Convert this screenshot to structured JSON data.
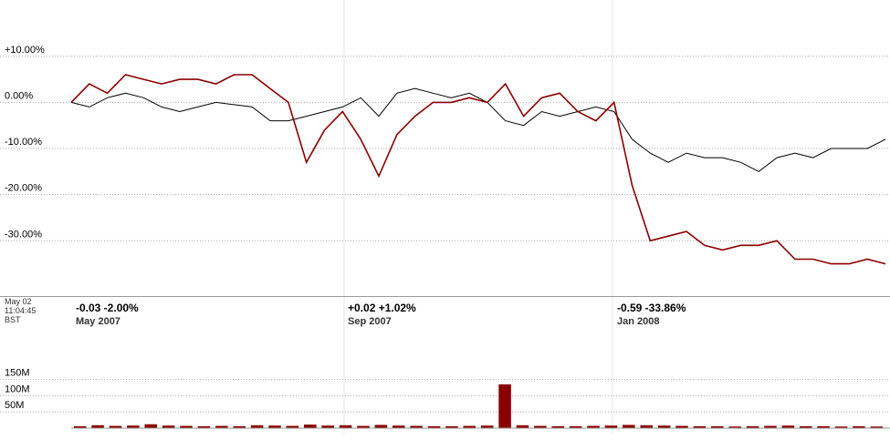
{
  "status": {
    "date": "May 02",
    "time": "11:04:45",
    "zone": "BST"
  },
  "periods": [
    {
      "change": "-0.03 -2.00%",
      "label": "May 2007",
      "color": "#cc0000"
    },
    {
      "change": "+0.02 +1.02%",
      "label": "Sep 2007",
      "color": "#339900"
    },
    {
      "change": "-0.59 -33.86%",
      "label": "Jan 2008",
      "color": "#cc0000"
    }
  ],
  "chart_data": [
    {
      "type": "line",
      "grid": true,
      "ylim": [
        -42,
        22
      ],
      "yticks": [
        {
          "value": 10,
          "label": "+10.00%"
        },
        {
          "value": 0,
          "label": "0.00%"
        },
        {
          "value": -10,
          "label": "-10.00%"
        },
        {
          "value": -20,
          "label": "-20.00%"
        },
        {
          "value": -30,
          "label": "-30.00%"
        }
      ],
      "series": [
        {
          "color": "#000000",
          "values": [
            0,
            -1,
            1,
            2,
            1,
            -1,
            -2,
            -1,
            0,
            -0.5,
            -1,
            -4,
            -4,
            -3,
            -2,
            -1,
            1,
            -3,
            2,
            3,
            2,
            1,
            2,
            0,
            -4,
            -5,
            -2,
            -3,
            -2,
            -1,
            -2,
            -8,
            -11,
            -13,
            -11,
            -12,
            -12,
            -13,
            -15,
            -12,
            -11,
            -12,
            -10,
            -10,
            -10,
            -8
          ]
        },
        {
          "color": "#8b0000",
          "values": [
            0,
            4,
            2,
            6,
            5,
            4,
            5,
            5,
            4,
            6,
            6,
            3,
            0,
            -13,
            -6,
            -2,
            -8,
            -16,
            -7,
            -3,
            0,
            0,
            1,
            0,
            4,
            -3,
            1,
            2,
            -2,
            -4,
            0,
            -18,
            -30,
            -29,
            -28,
            -31,
            -32,
            -31,
            -31,
            -30,
            -34,
            -34,
            -35,
            -35,
            -34,
            -35
          ]
        }
      ]
    },
    {
      "type": "bar",
      "grid": true,
      "color": "#8b0000",
      "ylim": [
        0,
        160000000
      ],
      "yticks": [
        {
          "value": 150000000,
          "label": "150M"
        },
        {
          "value": 100000000,
          "label": "100M"
        },
        {
          "value": 50000000,
          "label": "50M"
        }
      ],
      "values": [
        6000000.0,
        9000000.0,
        7000000.0,
        8000000.0,
        12000000.0,
        8000000.0,
        7000000.0,
        6000000.0,
        7000000.0,
        6000000.0,
        9000000.0,
        8000000.0,
        7000000.0,
        11000000.0,
        8000000.0,
        9000000.0,
        7000000.0,
        10000000.0,
        8000000.0,
        7000000.0,
        6000000.0,
        6000000.0,
        7000000.0,
        8000000.0,
        135000000.0,
        9000000.0,
        7000000.0,
        6000000.0,
        6000000.0,
        7000000.0,
        8000000.0,
        10000000.0,
        9000000.0,
        8000000.0,
        7000000.0,
        6000000.0,
        6000000.0,
        5000000.0,
        6000000.0,
        7000000.0,
        8000000.0,
        6000000.0,
        6000000.0,
        5000000.0,
        6000000.0,
        5000000.0
      ]
    }
  ]
}
